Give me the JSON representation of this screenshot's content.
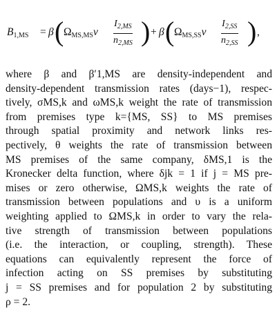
{
  "equation": {
    "lhs": "B",
    "lhs_sub": "1,MS",
    "eq": "=",
    "beta": "β",
    "omega1": "Ω",
    "omega1_sub": "MS,MS",
    "nu": "ν",
    "frac1_num": "I",
    "frac1_num_sub": "2,MS",
    "frac1_den": "n",
    "frac1_den_sub": "2,MS",
    "plus": "+",
    "omega2": "Ω",
    "omega2_sub": "MS,SS",
    "frac2_num": "I",
    "frac2_num_sub": "2,SS",
    "frac2_den": "n",
    "frac2_den_sub": "2,SS",
    "trail": ","
  },
  "body_lines": [
    "where β and β′1,MS are density-independent and",
    "density-dependent transmission rates (days−1), respec-",
    "tively, σMS,k and ωMS,k weight the rate of transmission",
    "from premises type k={MS, SS} to MS premises",
    "through spatial proximity and network links res-",
    "pectively, θ weights the rate of transmission between",
    "MS premises of the same company, δMS,1 is the",
    "Kronecker delta function, where δjk = 1 if j = MS pre-",
    "mises or zero otherwise, ΩMS,k weights the rate of",
    "transmission between populations and υ is a uniform",
    "weighting applied to ΩMS,k in order to vary the rela-",
    "tive strength of transmission between populations",
    "(i.e. the interaction, or coupling, strength). These",
    "equations can equivalently represent the force of",
    "infection acting on SS premises by substituting",
    "j = SS premises and for population 2 by substituting",
    "ρ = 2."
  ]
}
